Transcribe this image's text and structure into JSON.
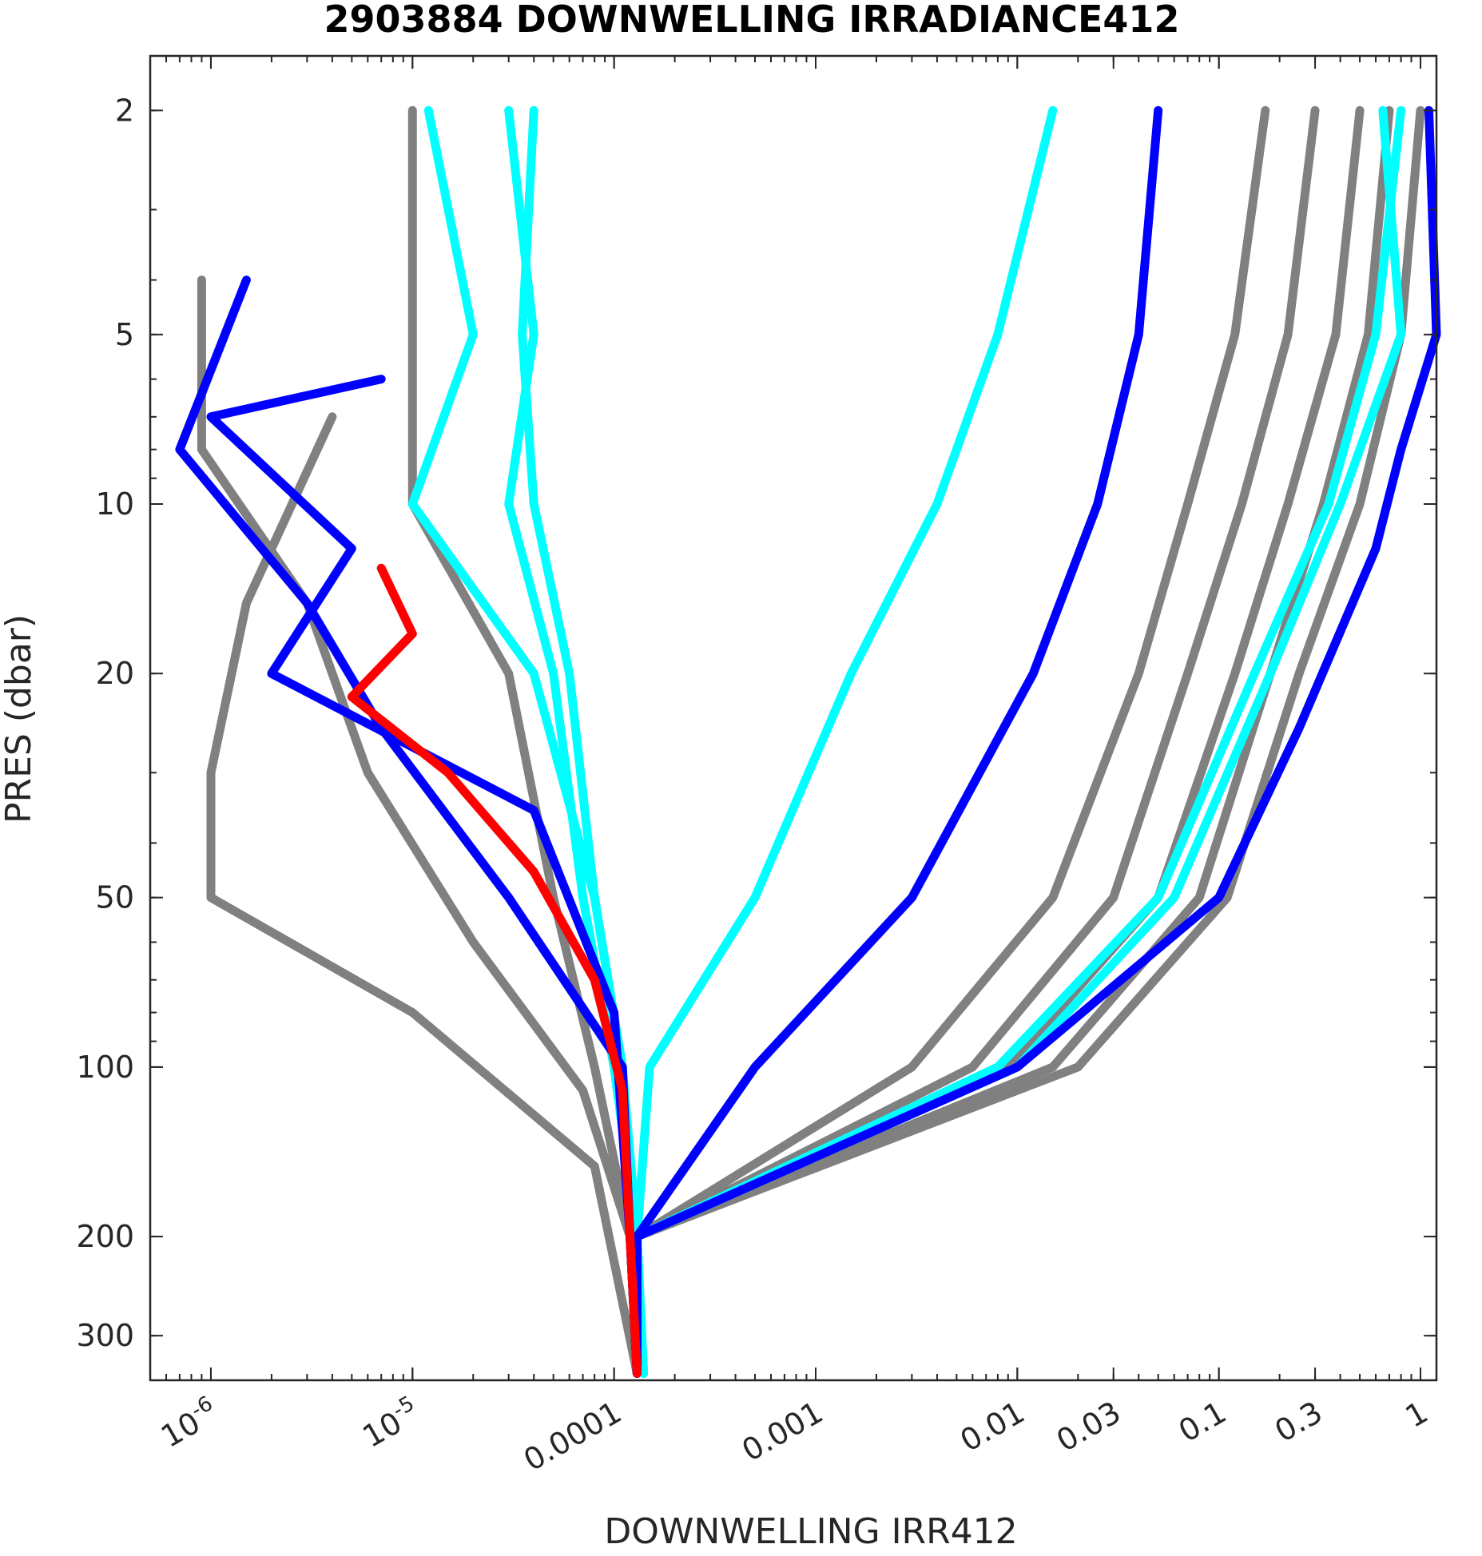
{
  "chart_data": {
    "type": "line",
    "title": "2903884  DOWNWELLING IRRADIANCE412",
    "xlabel": "DOWNWELLING IRR412",
    "ylabel": "PRES (dbar)",
    "xscale": "log",
    "yscale": "log",
    "y_reversed": true,
    "xlim": [
      5e-07,
      1.2
    ],
    "ylim": [
      1.6,
      360
    ],
    "xticks": [
      {
        "value": 1e-06,
        "base": "10",
        "exp": "-6"
      },
      {
        "value": 1e-05,
        "base": "10",
        "exp": "-5"
      },
      {
        "value": 0.0001,
        "label": "0.0001"
      },
      {
        "value": 0.001,
        "label": "0.001"
      },
      {
        "value": 0.01,
        "label": "0.01"
      },
      {
        "value": 0.03,
        "label": "0.03"
      },
      {
        "value": 0.1,
        "label": "0.1"
      },
      {
        "value": 0.3,
        "label": "0.3"
      },
      {
        "value": 1,
        "label": "1"
      }
    ],
    "yticks": [
      {
        "value": 2,
        "label": "2"
      },
      {
        "value": 5,
        "label": "5"
      },
      {
        "value": 10,
        "label": "10"
      },
      {
        "value": 20,
        "label": "20"
      },
      {
        "value": 50,
        "label": "50"
      },
      {
        "value": 100,
        "label": "100"
      },
      {
        "value": 200,
        "label": "200"
      },
      {
        "value": 300,
        "label": "300"
      }
    ],
    "grid": false,
    "legend": "none",
    "series": [
      {
        "color": "#808080",
        "points": [
          [
            1e-05,
            2
          ],
          [
            1e-05,
            5
          ],
          [
            1e-05,
            10
          ],
          [
            3e-05,
            20
          ],
          [
            5e-05,
            50
          ],
          [
            8e-05,
            100
          ],
          [
            0.00012,
            200
          ],
          [
            0.00013,
            350
          ]
        ]
      },
      {
        "color": "#808080",
        "points": [
          [
            9e-07,
            4
          ],
          [
            9e-07,
            8
          ],
          [
            3e-06,
            15
          ],
          [
            6e-06,
            30
          ],
          [
            2e-05,
            60
          ],
          [
            7e-05,
            110
          ],
          [
            0.00012,
            200
          ],
          [
            0.00013,
            350
          ]
        ]
      },
      {
        "color": "#808080",
        "points": [
          [
            4e-06,
            7
          ],
          [
            1.5e-06,
            15
          ],
          [
            1e-06,
            30
          ],
          [
            1e-06,
            50
          ],
          [
            1e-05,
            80
          ],
          [
            8e-05,
            150
          ],
          [
            0.00013,
            350
          ]
        ]
      },
      {
        "color": "#808080",
        "points": [
          [
            0.17,
            2
          ],
          [
            0.12,
            5
          ],
          [
            0.07,
            10
          ],
          [
            0.04,
            20
          ],
          [
            0.015,
            50
          ],
          [
            0.003,
            100
          ],
          [
            0.00013,
            200
          ],
          [
            0.00013,
            350
          ]
        ]
      },
      {
        "color": "#808080",
        "points": [
          [
            0.3,
            2
          ],
          [
            0.22,
            5
          ],
          [
            0.13,
            10
          ],
          [
            0.07,
            20
          ],
          [
            0.03,
            50
          ],
          [
            0.006,
            100
          ],
          [
            0.00013,
            200
          ],
          [
            0.00013,
            350
          ]
        ]
      },
      {
        "color": "#808080",
        "points": [
          [
            0.5,
            2
          ],
          [
            0.38,
            5
          ],
          [
            0.22,
            10
          ],
          [
            0.12,
            20
          ],
          [
            0.05,
            50
          ],
          [
            0.009,
            100
          ],
          [
            0.00013,
            200
          ],
          [
            0.00013,
            350
          ]
        ]
      },
      {
        "color": "#808080",
        "points": [
          [
            0.7,
            2
          ],
          [
            0.55,
            5
          ],
          [
            0.33,
            10
          ],
          [
            0.18,
            20
          ],
          [
            0.08,
            50
          ],
          [
            0.015,
            100
          ],
          [
            0.00013,
            200
          ],
          [
            0.00013,
            350
          ]
        ]
      },
      {
        "color": "#808080",
        "points": [
          [
            1.0,
            2
          ],
          [
            0.8,
            5
          ],
          [
            0.5,
            10
          ],
          [
            0.25,
            20
          ],
          [
            0.11,
            50
          ],
          [
            0.02,
            100
          ],
          [
            0.00013,
            200
          ],
          [
            0.00013,
            350
          ]
        ]
      },
      {
        "color": "#00FFFF",
        "points": [
          [
            1.2e-05,
            2
          ],
          [
            2e-05,
            5
          ],
          [
            1e-05,
            10
          ],
          [
            4e-05,
            20
          ],
          [
            8e-05,
            50
          ],
          [
            0.00011,
            100
          ],
          [
            0.00012,
            200
          ],
          [
            0.00014,
            350
          ]
        ]
      },
      {
        "color": "#00FFFF",
        "points": [
          [
            3e-05,
            2
          ],
          [
            4e-05,
            5
          ],
          [
            3e-05,
            10
          ],
          [
            5e-05,
            20
          ],
          [
            7e-05,
            50
          ],
          [
            0.0001,
            100
          ],
          [
            0.00013,
            200
          ],
          [
            0.00014,
            350
          ]
        ]
      },
      {
        "color": "#00FFFF",
        "points": [
          [
            4e-05,
            2
          ],
          [
            3.5e-05,
            5
          ],
          [
            4e-05,
            10
          ],
          [
            6e-05,
            20
          ],
          [
            8e-05,
            50
          ],
          [
            0.00011,
            100
          ],
          [
            0.00013,
            200
          ],
          [
            0.00014,
            350
          ]
        ]
      },
      {
        "color": "#00FFFF",
        "points": [
          [
            0.015,
            2
          ],
          [
            0.008,
            5
          ],
          [
            0.004,
            10
          ],
          [
            0.0015,
            20
          ],
          [
            0.0005,
            50
          ],
          [
            0.00015,
            100
          ],
          [
            0.00013,
            200
          ],
          [
            0.00014,
            350
          ]
        ]
      },
      {
        "color": "#00FFFF",
        "points": [
          [
            0.8,
            2
          ],
          [
            0.6,
            5
          ],
          [
            0.35,
            10
          ],
          [
            0.15,
            20
          ],
          [
            0.05,
            50
          ],
          [
            0.008,
            100
          ],
          [
            0.00013,
            200
          ],
          [
            0.00014,
            350
          ]
        ]
      },
      {
        "color": "#00FFFF",
        "points": [
          [
            0.65,
            2
          ],
          [
            0.8,
            5
          ],
          [
            0.4,
            10
          ],
          [
            0.18,
            20
          ],
          [
            0.06,
            50
          ],
          [
            0.01,
            100
          ],
          [
            0.00013,
            200
          ],
          [
            0.00014,
            350
          ]
        ]
      },
      {
        "color": "#0000FF",
        "points": [
          [
            1.5e-06,
            4
          ],
          [
            7e-07,
            8
          ],
          [
            3e-06,
            15
          ],
          [
            7e-06,
            25
          ],
          [
            3e-05,
            50
          ],
          [
            0.00011,
            100
          ],
          [
            0.00012,
            200
          ],
          [
            0.00013,
            350
          ]
        ]
      },
      {
        "color": "#0000FF",
        "points": [
          [
            7e-06,
            6
          ],
          [
            1e-06,
            7
          ],
          [
            5e-06,
            12
          ],
          [
            2e-06,
            20
          ],
          [
            4e-05,
            35
          ],
          [
            0.0001,
            80
          ],
          [
            0.00012,
            200
          ],
          [
            0.00013,
            350
          ]
        ]
      },
      {
        "color": "#0000FF",
        "points": [
          [
            0.05,
            2
          ],
          [
            0.04,
            5
          ],
          [
            0.025,
            10
          ],
          [
            0.012,
            20
          ],
          [
            0.003,
            50
          ],
          [
            0.0005,
            100
          ],
          [
            0.00013,
            200
          ],
          [
            0.00013,
            350
          ]
        ]
      },
      {
        "color": "#0000FF",
        "points": [
          [
            1.1,
            2
          ],
          [
            1.2,
            5
          ],
          [
            0.8,
            8
          ],
          [
            0.6,
            12
          ],
          [
            0.25,
            25
          ],
          [
            0.1,
            50
          ],
          [
            0.01,
            100
          ],
          [
            0.00013,
            200
          ],
          [
            0.00013,
            350
          ]
        ]
      },
      {
        "color": "#FF0000",
        "points": [
          [
            7e-06,
            13
          ],
          [
            1e-05,
            17
          ],
          [
            5e-06,
            22
          ],
          [
            1.5e-05,
            30
          ],
          [
            4e-05,
            45
          ],
          [
            8e-05,
            70
          ],
          [
            0.00011,
            110
          ],
          [
            0.00012,
            200
          ],
          [
            0.00013,
            350
          ]
        ]
      }
    ]
  }
}
